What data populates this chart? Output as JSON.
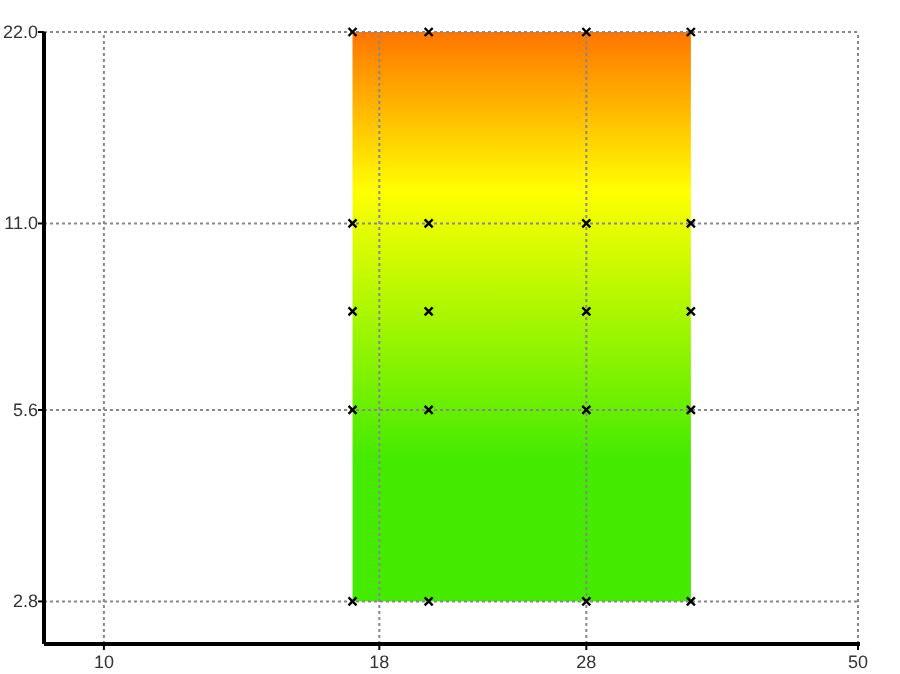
{
  "chart_data": {
    "type": "scatter",
    "log": "xy",
    "grid": true,
    "marker": "cross",
    "xlim": [
      8.8,
      50
    ],
    "xticks": [
      10,
      18,
      28,
      50
    ],
    "ylim": [
      2.4,
      22
    ],
    "yticks": [
      {
        "value": 2.8,
        "label": "2.8"
      },
      {
        "value": 5.6,
        "label": "5.6"
      },
      {
        "value": 11,
        "label": "11.0"
      },
      {
        "value": 22,
        "label": "22.0"
      }
    ],
    "series": [
      {
        "color": "#000000",
        "x": [
          17,
          20,
          28,
          35,
          17,
          20,
          28,
          35,
          17,
          20,
          28,
          35,
          17,
          20,
          28,
          35,
          17,
          20,
          28,
          35
        ],
        "values": [
          2.8,
          2.8,
          2.8,
          2.8,
          5.6,
          5.6,
          5.6,
          5.6,
          8,
          8,
          8,
          8,
          11,
          11,
          11,
          11,
          22,
          22,
          22,
          22
        ]
      }
    ]
  }
}
